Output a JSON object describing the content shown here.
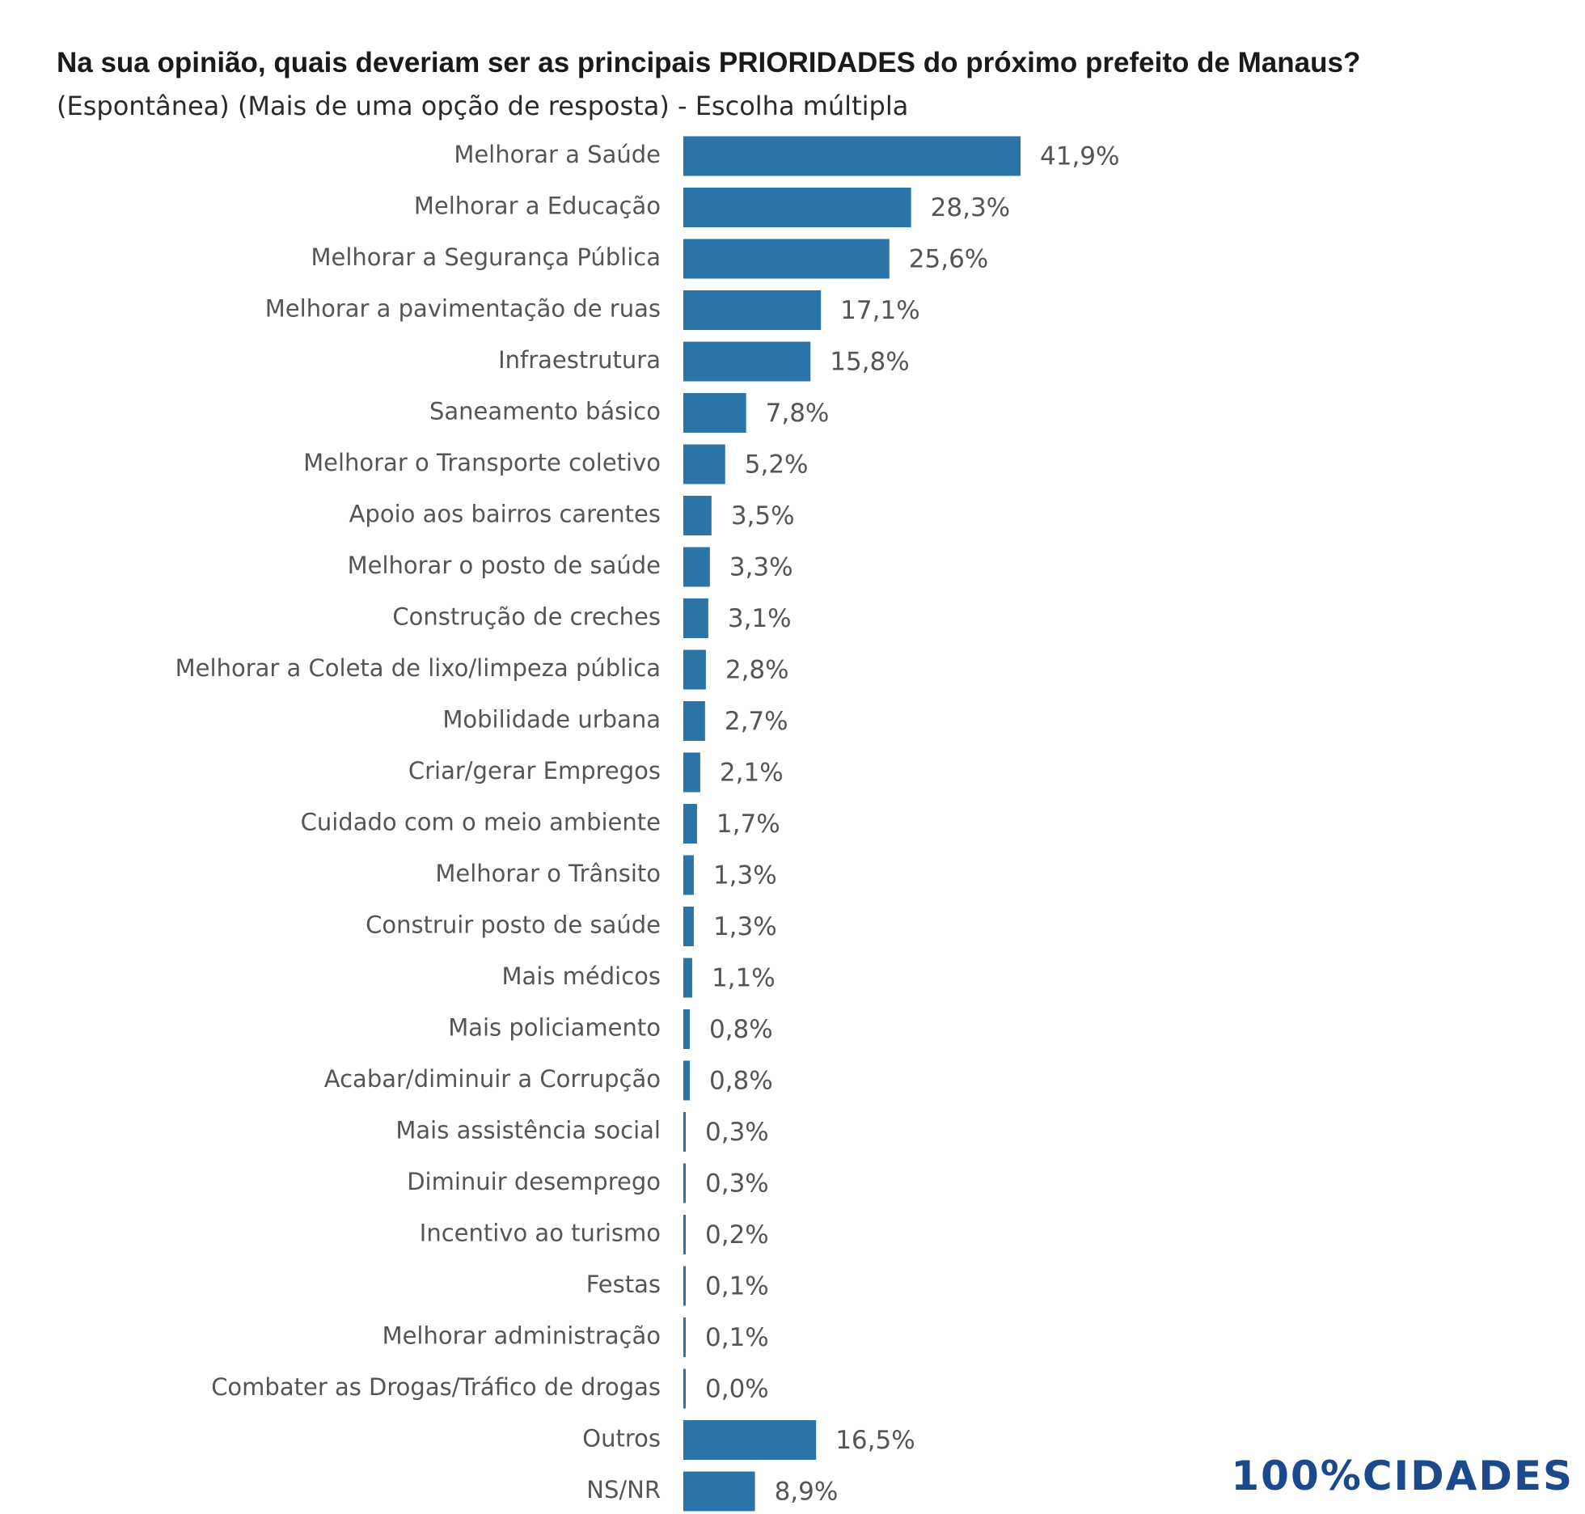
{
  "chart_data": {
    "type": "bar",
    "orientation": "horizontal",
    "title": "Na sua opinião, quais deveriam ser as principais PRIORIDADES do próximo prefeito de Manaus?",
    "subtitle": "(Espontânea) (Mais de uma opção de resposta) - Escolha múltipla",
    "categories": [
      "Melhorar a Saúde",
      "Melhorar a Educação",
      "Melhorar a Segurança Pública",
      "Melhorar a pavimentação de ruas",
      "Infraestrutura",
      "Saneamento básico",
      "Melhorar o Transporte coletivo",
      "Apoio aos bairros carentes",
      "Melhorar o posto de saúde",
      "Construção de creches",
      "Melhorar a Coleta de lixo/limpeza pública",
      "Mobilidade urbana",
      "Criar/gerar Empregos",
      "Cuidado com o meio ambiente",
      "Melhorar o Trânsito",
      "Construir posto de saúde",
      "Mais médicos",
      "Mais policiamento",
      "Acabar/diminuir a Corrupção",
      "Mais assistência social",
      "Diminuir desemprego",
      "Incentivo ao turismo",
      "Festas",
      "Melhorar administração",
      "Combater as Drogas/Tráfico de drogas",
      "Outros",
      "NS/NR"
    ],
    "values": [
      41.9,
      28.3,
      25.6,
      17.1,
      15.8,
      7.8,
      5.2,
      3.5,
      3.3,
      3.1,
      2.8,
      2.7,
      2.1,
      1.7,
      1.3,
      1.3,
      1.1,
      0.8,
      0.8,
      0.3,
      0.3,
      0.2,
      0.1,
      0.1,
      0.0,
      16.5,
      8.9
    ],
    "value_labels": [
      "41,9%",
      "28,3%",
      "25,6%",
      "17,1%",
      "15,8%",
      "7,8%",
      "5,2%",
      "3,5%",
      "3,3%",
      "3,1%",
      "2,8%",
      "2,7%",
      "2,1%",
      "1,7%",
      "1,3%",
      "1,3%",
      "1,1%",
      "0,8%",
      "0,8%",
      "0,3%",
      "0,3%",
      "0,2%",
      "0,1%",
      "0,1%",
      "0,0%",
      "16,5%",
      "8,9%"
    ],
    "bar_color": "#2a74a7",
    "xlim": [
      0,
      50
    ],
    "grid": false,
    "legend": "none"
  },
  "logo": {
    "digits": "100%",
    "word": "CIDADES",
    "color": "#1b4a8c"
  }
}
